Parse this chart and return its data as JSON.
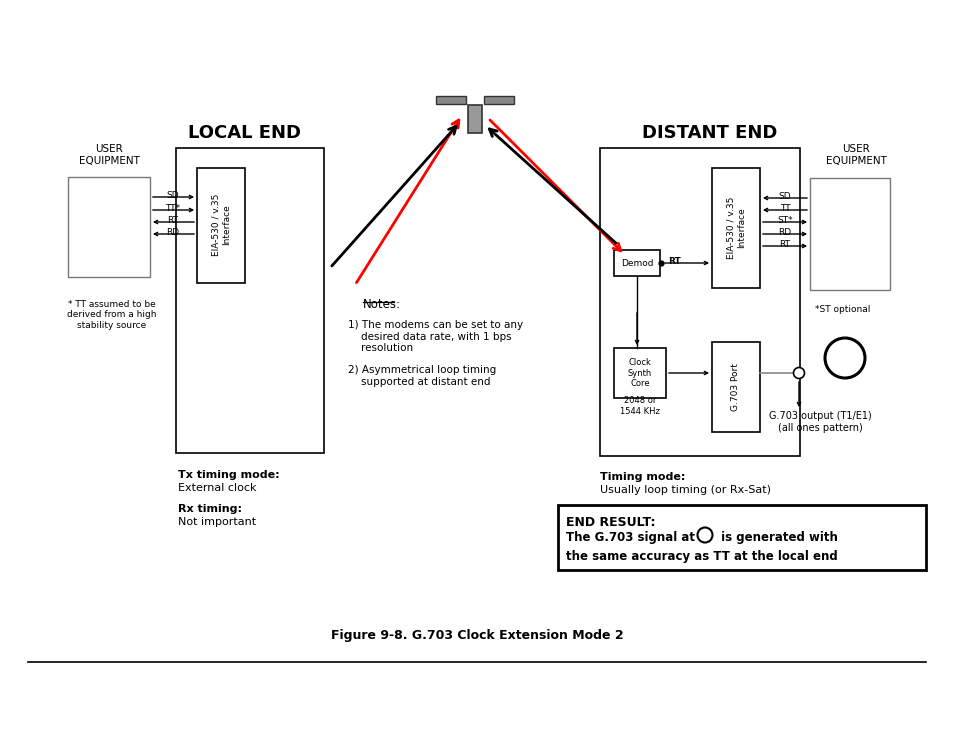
{
  "title": "Figure 9-8. G.703 Clock Extension Mode 2",
  "bg_color": "#ffffff",
  "local_end_title": "LOCAL END",
  "distant_end_title": "DISTANT END",
  "user_equip_label": "USER\nEQUIPMENT",
  "footnote": "* TT assumed to be\nderived from a high\nstability source",
  "tx_timing_label": "Tx timing mode:",
  "tx_timing_value": "External clock",
  "rx_timing_label": "Rx timing:",
  "rx_timing_value": "Not important",
  "timing_mode_label": "Timing mode:",
  "timing_mode_value": "Usually loop timing (or Rx-Sat)",
  "notes_title": "Notes:",
  "note1": "1) The modems can be set to any\n    desired data rate, with 1 bps\n    resolution",
  "note2": "2) Asymmetrical loop timing\n    supported at distant end",
  "end_result_title": "END RESULT:",
  "end_result_line2a": "The G.703 signal at ",
  "end_result_line2b": " is generated with",
  "end_result_line3": "the same accuracy as TT at the local end",
  "st_optional": "*ST optional",
  "freq_label": "2048 or\n1544 KHz",
  "g703_output": "G.703 output (T1/E1)\n(all ones pattern)",
  "local_signals": [
    "SD",
    "TT*",
    "RT",
    "RD"
  ],
  "local_signal_dirs_right": [
    true,
    true,
    false,
    false
  ],
  "distant_signals": [
    "SD",
    "TT",
    "ST*",
    "RD",
    "RT"
  ],
  "distant_signal_dirs_right": [
    false,
    false,
    true,
    true,
    true
  ]
}
